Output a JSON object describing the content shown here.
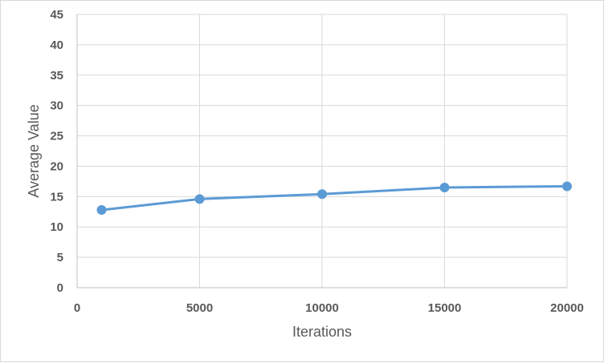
{
  "chart_data": {
    "type": "scatter",
    "title": "",
    "xlabel": "Iterations",
    "ylabel": "Average Value",
    "xlim": [
      0,
      20000
    ],
    "ylim": [
      0,
      45
    ],
    "x_ticks": [
      0,
      5000,
      10000,
      15000,
      20000
    ],
    "y_ticks": [
      0,
      5,
      10,
      15,
      20,
      25,
      30,
      35,
      40,
      45
    ],
    "grid": true,
    "legend": "none",
    "series": [
      {
        "name": "Average Value",
        "x": [
          1000,
          5000,
          10000,
          15000,
          20000
        ],
        "values": [
          12.8,
          14.6,
          15.4,
          16.5,
          16.7
        ],
        "color": "#5b9bd5",
        "style": "line-with-markers"
      }
    ]
  }
}
